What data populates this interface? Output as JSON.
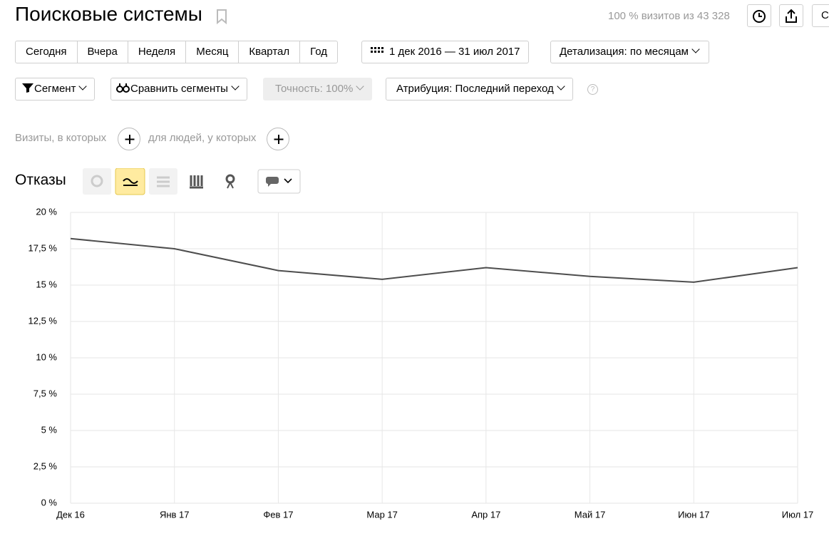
{
  "header": {
    "title": "Поисковые системы",
    "visits_info": "100 % визитов из 43 328",
    "cut_button": "С"
  },
  "periods": [
    "Сегодня",
    "Вчера",
    "Неделя",
    "Месяц",
    "Квартал",
    "Год"
  ],
  "date_range": "1 дек 2016 — 31 июл 2017",
  "detail": "Детализация: по месяцам",
  "filters": {
    "segment": "Сегмент",
    "compare": "Сравнить сегменты",
    "accuracy": "Точность: 100%",
    "attribution": "Атрибуция: Последний переход",
    "help": "?"
  },
  "conditions": {
    "visits": "Визиты, в которых",
    "people": "для людей, у которых"
  },
  "chart_data": {
    "type": "line",
    "title": "Отказы",
    "categories": [
      "Дек 16",
      "Янв 17",
      "Фев 17",
      "Мар 17",
      "Апр 17",
      "Май 17",
      "Июн 17",
      "Июл 17"
    ],
    "series": [
      {
        "color": "#4d4d4d",
        "values": [
          18.2,
          17.5,
          16.0,
          15.4,
          16.2,
          15.6,
          15.2,
          16.2
        ]
      }
    ],
    "ylim": [
      0,
      20
    ],
    "yticks": [
      {
        "value": 0,
        "label": "0 %"
      },
      {
        "value": 2.5,
        "label": "2,5 %"
      },
      {
        "value": 5,
        "label": "5 %"
      },
      {
        "value": 7.5,
        "label": "7,5 %"
      },
      {
        "value": 10,
        "label": "10 %"
      },
      {
        "value": 12.5,
        "label": "12,5 %"
      },
      {
        "value": 15,
        "label": "15 %"
      },
      {
        "value": 17.5,
        "label": "17,5 %"
      },
      {
        "value": 20,
        "label": "20 %"
      }
    ],
    "grid": true
  }
}
